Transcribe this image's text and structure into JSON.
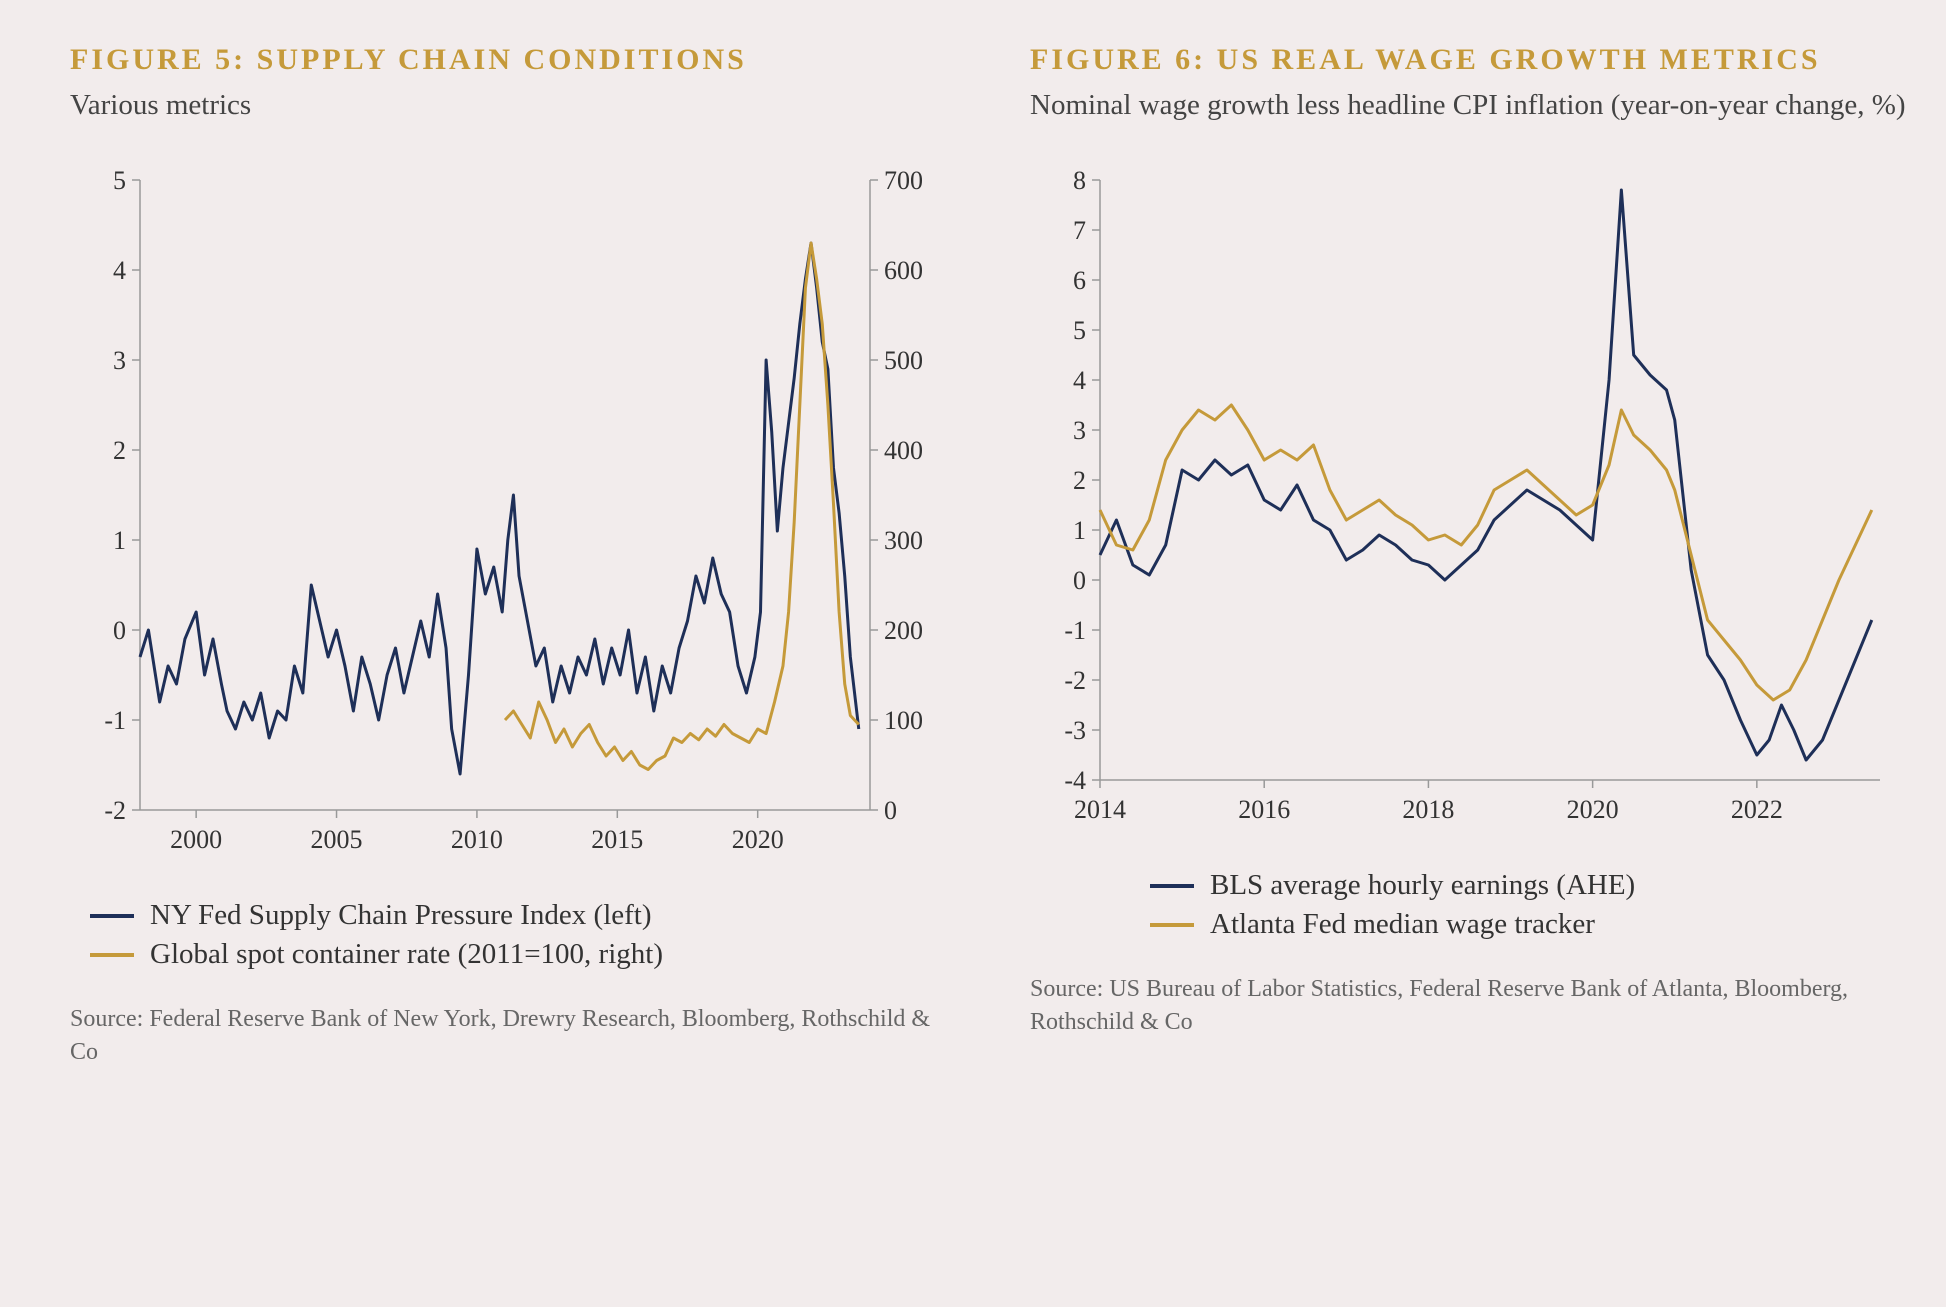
{
  "figure5": {
    "title": "FIGURE 5: SUPPLY CHAIN CONDITIONS",
    "subtitle": "Various metrics",
    "type": "line-dual-axis",
    "background_color": "#f2ecec",
    "plot_bg": "#f2ecec",
    "axis_color": "#999999",
    "grid_color": "none",
    "tick_font_size": 26,
    "title_fontsize": 30,
    "title_color": "#c59a3a",
    "sub_fontsize": 29,
    "legend_fontsize": 29,
    "source_fontsize": 24,
    "line_width": 3,
    "left_axis": {
      "min": -2,
      "max": 5,
      "ticks": [
        -2,
        -1,
        0,
        1,
        2,
        3,
        4,
        5
      ]
    },
    "right_axis": {
      "min": 0,
      "max": 700,
      "ticks": [
        0,
        100,
        200,
        300,
        400,
        500,
        600,
        700
      ]
    },
    "x_axis": {
      "min": 1998,
      "max": 2024,
      "ticks": [
        2000,
        2005,
        2010,
        2015,
        2020
      ]
    },
    "series": [
      {
        "name": "NY Fed Supply Chain Pressure Index (left)",
        "color": "#1e2f58",
        "axis": "left",
        "data": [
          [
            1998,
            -0.3
          ],
          [
            1998.3,
            0.0
          ],
          [
            1998.7,
            -0.8
          ],
          [
            1999,
            -0.4
          ],
          [
            1999.3,
            -0.6
          ],
          [
            1999.6,
            -0.1
          ],
          [
            2000,
            0.2
          ],
          [
            2000.3,
            -0.5
          ],
          [
            2000.6,
            -0.1
          ],
          [
            2000.9,
            -0.6
          ],
          [
            2001.1,
            -0.9
          ],
          [
            2001.4,
            -1.1
          ],
          [
            2001.7,
            -0.8
          ],
          [
            2002,
            -1.0
          ],
          [
            2002.3,
            -0.7
          ],
          [
            2002.6,
            -1.2
          ],
          [
            2002.9,
            -0.9
          ],
          [
            2003.2,
            -1.0
          ],
          [
            2003.5,
            -0.4
          ],
          [
            2003.8,
            -0.7
          ],
          [
            2004.1,
            0.5
          ],
          [
            2004.4,
            0.1
          ],
          [
            2004.7,
            -0.3
          ],
          [
            2005,
            0.0
          ],
          [
            2005.3,
            -0.4
          ],
          [
            2005.6,
            -0.9
          ],
          [
            2005.9,
            -0.3
          ],
          [
            2006.2,
            -0.6
          ],
          [
            2006.5,
            -1.0
          ],
          [
            2006.8,
            -0.5
          ],
          [
            2007.1,
            -0.2
          ],
          [
            2007.4,
            -0.7
          ],
          [
            2007.7,
            -0.3
          ],
          [
            2008,
            0.1
          ],
          [
            2008.3,
            -0.3
          ],
          [
            2008.6,
            0.4
          ],
          [
            2008.9,
            -0.2
          ],
          [
            2009.1,
            -1.1
          ],
          [
            2009.4,
            -1.6
          ],
          [
            2009.7,
            -0.5
          ],
          [
            2010,
            0.9
          ],
          [
            2010.3,
            0.4
          ],
          [
            2010.6,
            0.7
          ],
          [
            2010.9,
            0.2
          ],
          [
            2011.1,
            1.0
          ],
          [
            2011.3,
            1.5
          ],
          [
            2011.5,
            0.6
          ],
          [
            2011.8,
            0.1
          ],
          [
            2012.1,
            -0.4
          ],
          [
            2012.4,
            -0.2
          ],
          [
            2012.7,
            -0.8
          ],
          [
            2013,
            -0.4
          ],
          [
            2013.3,
            -0.7
          ],
          [
            2013.6,
            -0.3
          ],
          [
            2013.9,
            -0.5
          ],
          [
            2014.2,
            -0.1
          ],
          [
            2014.5,
            -0.6
          ],
          [
            2014.8,
            -0.2
          ],
          [
            2015.1,
            -0.5
          ],
          [
            2015.4,
            0.0
          ],
          [
            2015.7,
            -0.7
          ],
          [
            2016,
            -0.3
          ],
          [
            2016.3,
            -0.9
          ],
          [
            2016.6,
            -0.4
          ],
          [
            2016.9,
            -0.7
          ],
          [
            2017.2,
            -0.2
          ],
          [
            2017.5,
            0.1
          ],
          [
            2017.8,
            0.6
          ],
          [
            2018.1,
            0.3
          ],
          [
            2018.4,
            0.8
          ],
          [
            2018.7,
            0.4
          ],
          [
            2019,
            0.2
          ],
          [
            2019.3,
            -0.4
          ],
          [
            2019.6,
            -0.7
          ],
          [
            2019.9,
            -0.3
          ],
          [
            2020.1,
            0.2
          ],
          [
            2020.3,
            3.0
          ],
          [
            2020.5,
            2.2
          ],
          [
            2020.7,
            1.1
          ],
          [
            2020.9,
            1.8
          ],
          [
            2021.1,
            2.3
          ],
          [
            2021.3,
            2.8
          ],
          [
            2021.5,
            3.4
          ],
          [
            2021.7,
            3.9
          ],
          [
            2021.9,
            4.3
          ],
          [
            2022.1,
            3.8
          ],
          [
            2022.3,
            3.2
          ],
          [
            2022.5,
            2.9
          ],
          [
            2022.7,
            1.8
          ],
          [
            2022.9,
            1.3
          ],
          [
            2023.1,
            0.6
          ],
          [
            2023.3,
            -0.3
          ],
          [
            2023.6,
            -1.1
          ]
        ]
      },
      {
        "name": "Global spot container rate (2011=100, right)",
        "color": "#c59a3a",
        "axis": "right",
        "data": [
          [
            2011,
            100
          ],
          [
            2011.3,
            110
          ],
          [
            2011.6,
            95
          ],
          [
            2011.9,
            80
          ],
          [
            2012.2,
            120
          ],
          [
            2012.5,
            100
          ],
          [
            2012.8,
            75
          ],
          [
            2013.1,
            90
          ],
          [
            2013.4,
            70
          ],
          [
            2013.7,
            85
          ],
          [
            2014,
            95
          ],
          [
            2014.3,
            75
          ],
          [
            2014.6,
            60
          ],
          [
            2014.9,
            70
          ],
          [
            2015.2,
            55
          ],
          [
            2015.5,
            65
          ],
          [
            2015.8,
            50
          ],
          [
            2016.1,
            45
          ],
          [
            2016.4,
            55
          ],
          [
            2016.7,
            60
          ],
          [
            2017,
            80
          ],
          [
            2017.3,
            75
          ],
          [
            2017.6,
            85
          ],
          [
            2017.9,
            78
          ],
          [
            2018.2,
            90
          ],
          [
            2018.5,
            82
          ],
          [
            2018.8,
            95
          ],
          [
            2019.1,
            85
          ],
          [
            2019.4,
            80
          ],
          [
            2019.7,
            75
          ],
          [
            2020,
            90
          ],
          [
            2020.3,
            85
          ],
          [
            2020.6,
            120
          ],
          [
            2020.9,
            160
          ],
          [
            2021.1,
            220
          ],
          [
            2021.3,
            320
          ],
          [
            2021.5,
            450
          ],
          [
            2021.7,
            580
          ],
          [
            2021.9,
            630
          ],
          [
            2022.1,
            590
          ],
          [
            2022.3,
            540
          ],
          [
            2022.5,
            450
          ],
          [
            2022.7,
            340
          ],
          [
            2022.9,
            220
          ],
          [
            2023.1,
            140
          ],
          [
            2023.3,
            105
          ],
          [
            2023.6,
            95
          ]
        ]
      }
    ],
    "legend": [
      {
        "label": "NY Fed Supply Chain Pressure Index (left)",
        "color": "#1e2f58"
      },
      {
        "label": "Global spot container rate (2011=100, right)",
        "color": "#c59a3a"
      }
    ],
    "source": "Source: Federal Reserve Bank of New York, Drewry Research, Bloomberg, Rothschild & Co"
  },
  "figure6": {
    "title": "FIGURE 6: US REAL WAGE GROWTH METRICS",
    "subtitle": "Nominal wage growth less headline CPI inflation (year-on-year change, %)",
    "type": "line",
    "background_color": "#f2ecec",
    "axis_color": "#999999",
    "tick_font_size": 26,
    "title_fontsize": 30,
    "title_color": "#c59a3a",
    "sub_fontsize": 29,
    "legend_fontsize": 29,
    "source_fontsize": 24,
    "line_width": 3,
    "y_axis": {
      "min": -4,
      "max": 8,
      "ticks": [
        -4,
        -3,
        -2,
        -1,
        0,
        1,
        2,
        3,
        4,
        5,
        6,
        7,
        8
      ]
    },
    "x_axis": {
      "min": 2014,
      "max": 2023.5,
      "ticks": [
        2014,
        2016,
        2018,
        2020,
        2022
      ]
    },
    "series": [
      {
        "name": "BLS average hourly earnings (AHE)",
        "color": "#1e2f58",
        "data": [
          [
            2014,
            0.5
          ],
          [
            2014.2,
            1.2
          ],
          [
            2014.4,
            0.3
          ],
          [
            2014.6,
            0.1
          ],
          [
            2014.8,
            0.7
          ],
          [
            2015,
            2.2
          ],
          [
            2015.2,
            2.0
          ],
          [
            2015.4,
            2.4
          ],
          [
            2015.6,
            2.1
          ],
          [
            2015.8,
            2.3
          ],
          [
            2016,
            1.6
          ],
          [
            2016.2,
            1.4
          ],
          [
            2016.4,
            1.9
          ],
          [
            2016.6,
            1.2
          ],
          [
            2016.8,
            1.0
          ],
          [
            2017,
            0.4
          ],
          [
            2017.2,
            0.6
          ],
          [
            2017.4,
            0.9
          ],
          [
            2017.6,
            0.7
          ],
          [
            2017.8,
            0.4
          ],
          [
            2018,
            0.3
          ],
          [
            2018.2,
            0.0
          ],
          [
            2018.4,
            0.3
          ],
          [
            2018.6,
            0.6
          ],
          [
            2018.8,
            1.2
          ],
          [
            2019,
            1.5
          ],
          [
            2019.2,
            1.8
          ],
          [
            2019.4,
            1.6
          ],
          [
            2019.6,
            1.4
          ],
          [
            2019.8,
            1.1
          ],
          [
            2020,
            0.8
          ],
          [
            2020.2,
            4.0
          ],
          [
            2020.35,
            7.8
          ],
          [
            2020.5,
            4.5
          ],
          [
            2020.7,
            4.1
          ],
          [
            2020.9,
            3.8
          ],
          [
            2021,
            3.2
          ],
          [
            2021.2,
            0.2
          ],
          [
            2021.4,
            -1.5
          ],
          [
            2021.6,
            -2.0
          ],
          [
            2021.8,
            -2.8
          ],
          [
            2022,
            -3.5
          ],
          [
            2022.15,
            -3.2
          ],
          [
            2022.3,
            -2.5
          ],
          [
            2022.45,
            -3.0
          ],
          [
            2022.6,
            -3.6
          ],
          [
            2022.8,
            -3.2
          ],
          [
            2023,
            -2.4
          ],
          [
            2023.2,
            -1.6
          ],
          [
            2023.4,
            -0.8
          ]
        ]
      },
      {
        "name": "Atlanta Fed median wage tracker",
        "color": "#c59a3a",
        "data": [
          [
            2014,
            1.4
          ],
          [
            2014.2,
            0.7
          ],
          [
            2014.4,
            0.6
          ],
          [
            2014.6,
            1.2
          ],
          [
            2014.8,
            2.4
          ],
          [
            2015,
            3.0
          ],
          [
            2015.2,
            3.4
          ],
          [
            2015.4,
            3.2
          ],
          [
            2015.6,
            3.5
          ],
          [
            2015.8,
            3.0
          ],
          [
            2016,
            2.4
          ],
          [
            2016.2,
            2.6
          ],
          [
            2016.4,
            2.4
          ],
          [
            2016.6,
            2.7
          ],
          [
            2016.8,
            1.8
          ],
          [
            2017,
            1.2
          ],
          [
            2017.2,
            1.4
          ],
          [
            2017.4,
            1.6
          ],
          [
            2017.6,
            1.3
          ],
          [
            2017.8,
            1.1
          ],
          [
            2018,
            0.8
          ],
          [
            2018.2,
            0.9
          ],
          [
            2018.4,
            0.7
          ],
          [
            2018.6,
            1.1
          ],
          [
            2018.8,
            1.8
          ],
          [
            2019,
            2.0
          ],
          [
            2019.2,
            2.2
          ],
          [
            2019.4,
            1.9
          ],
          [
            2019.6,
            1.6
          ],
          [
            2019.8,
            1.3
          ],
          [
            2020,
            1.5
          ],
          [
            2020.2,
            2.3
          ],
          [
            2020.35,
            3.4
          ],
          [
            2020.5,
            2.9
          ],
          [
            2020.7,
            2.6
          ],
          [
            2020.9,
            2.2
          ],
          [
            2021,
            1.8
          ],
          [
            2021.2,
            0.5
          ],
          [
            2021.4,
            -0.8
          ],
          [
            2021.6,
            -1.2
          ],
          [
            2021.8,
            -1.6
          ],
          [
            2022,
            -2.1
          ],
          [
            2022.2,
            -2.4
          ],
          [
            2022.4,
            -2.2
          ],
          [
            2022.6,
            -1.6
          ],
          [
            2022.8,
            -0.8
          ],
          [
            2023,
            0.0
          ],
          [
            2023.2,
            0.7
          ],
          [
            2023.4,
            1.4
          ]
        ]
      }
    ],
    "legend": [
      {
        "label": "BLS average hourly earnings (AHE)",
        "color": "#1e2f58"
      },
      {
        "label": "Atlanta Fed median wage tracker",
        "color": "#c59a3a"
      }
    ],
    "source": "Source: US Bureau of Labor Statistics, Federal Reserve Bank of Atlanta, Bloomberg, Rothschild & Co"
  }
}
